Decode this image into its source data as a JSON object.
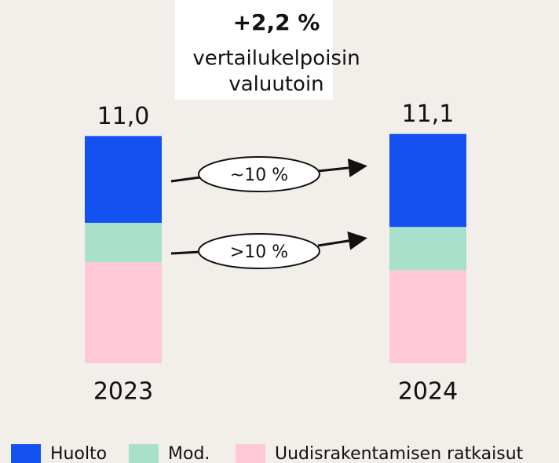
{
  "chart_data": {
    "type": "stacked_bar",
    "annotations": [
      "+2,2 %",
      "vertailukelpoisin",
      "valuutoin",
      "~10 %",
      ">10 %"
    ],
    "categories": [
      "2023",
      "2024"
    ],
    "series": [
      {
        "name": "Huolto",
        "color": "#1352f1",
        "values": [
          4.2,
          4.5
        ]
      },
      {
        "name": "Mod.",
        "color": "#a8e0cc",
        "values": [
          1.9,
          2.1
        ]
      },
      {
        "name": "Uudisrakentamisen ratkaisut",
        "color": "#ffc8d6",
        "values": [
          4.9,
          4.5
        ]
      }
    ],
    "totals": [
      11.0,
      11.1
    ],
    "total_labels": [
      "11,0",
      "11,1"
    ],
    "ylim": [
      0,
      12
    ]
  }
}
